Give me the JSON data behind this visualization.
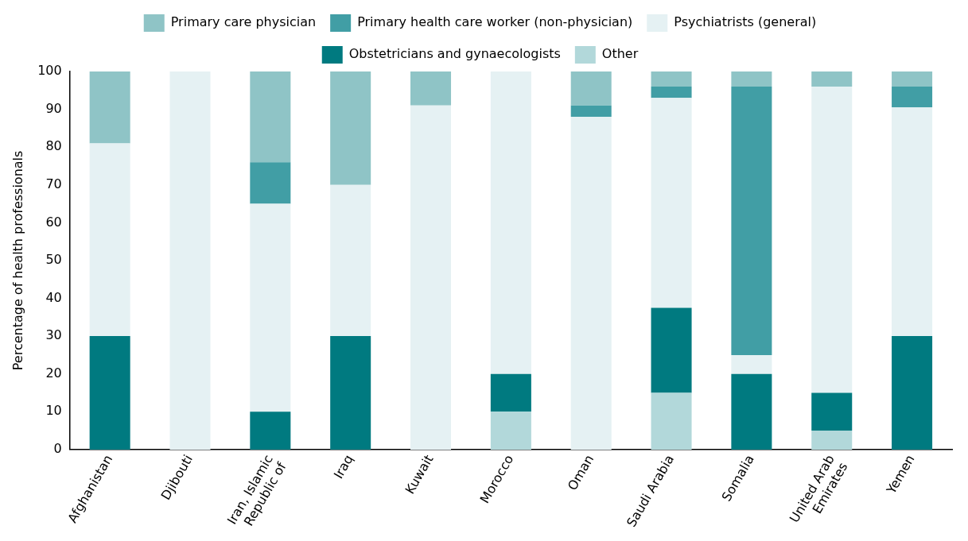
{
  "chart_data": {
    "type": "bar",
    "stacked": true,
    "ylabel": "Percentage of health professionals",
    "categories": [
      "Afghanistan",
      "Djibouti",
      "Iran, Islamic Republic of",
      "Iraq",
      "Kuwait",
      "Morocco",
      "Oman",
      "Saudi Arabia",
      "Somalia",
      "United Arab Emirates",
      "Yemen"
    ],
    "series": [
      {
        "name": "Other",
        "color": "#b2d8da",
        "values": [
          0,
          0,
          0,
          0,
          0,
          10,
          0,
          15,
          0,
          5,
          0
        ]
      },
      {
        "name": "Obstetricians and gynaecologists",
        "color": "#007a80",
        "values": [
          30,
          0,
          10,
          30,
          0,
          10,
          0,
          22.5,
          20,
          10,
          30
        ]
      },
      {
        "name": "Psychiatrists (general)",
        "color": "#e5f1f3",
        "values": [
          51,
          100,
          55,
          40,
          91,
          80,
          88,
          55.5,
          5,
          81,
          60.5
        ]
      },
      {
        "name": "Primary health care worker (non-physician)",
        "color": "#419ea5",
        "values": [
          0,
          0,
          11,
          0,
          0,
          0,
          3,
          3,
          71,
          0,
          5.5
        ]
      },
      {
        "name": "Primary care physician",
        "color": "#8fc4c6",
        "values": [
          19,
          0,
          24,
          30,
          9,
          0,
          9,
          4,
          4,
          4,
          4
        ]
      }
    ],
    "ylim": [
      0,
      100
    ],
    "yticks": [
      0,
      10,
      20,
      30,
      40,
      50,
      60,
      70,
      80,
      90,
      100
    ],
    "grid": false,
    "legend": "top"
  }
}
